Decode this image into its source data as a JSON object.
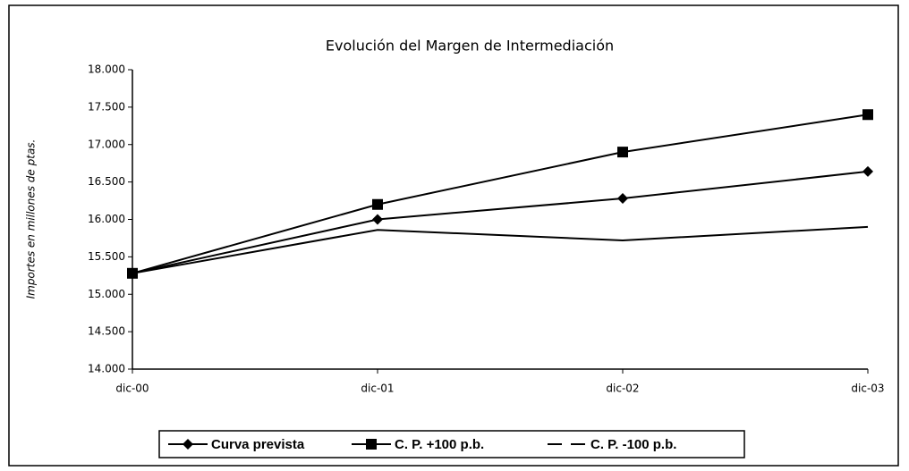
{
  "chart_data": {
    "type": "line",
    "title": "Evolución del Margen de Intermediación",
    "y_label": "Importes en millones de ptas.",
    "categories": [
      "dic-00",
      "dic-01",
      "dic-02",
      "dic-03"
    ],
    "series": [
      {
        "name": "Curva prevista",
        "color": "#000000",
        "marker": "diamond",
        "values": [
          15280,
          16000,
          16280,
          16640
        ]
      },
      {
        "name": "C. P. +100 p.b.",
        "color": "#000000",
        "marker": "square",
        "values": [
          15280,
          16200,
          16900,
          17400
        ]
      },
      {
        "name": "C. P. -100 p.b.",
        "color": "#000000",
        "marker": "none",
        "values": [
          15280,
          15860,
          15720,
          15900
        ]
      }
    ],
    "ylim": [
      14000,
      18000
    ],
    "yticks": [
      {
        "value": 14000,
        "label": "14.000"
      },
      {
        "value": 14500,
        "label": "14.500"
      },
      {
        "value": 15000,
        "label": "15.000"
      },
      {
        "value": 15500,
        "label": "15.500"
      },
      {
        "value": 16000,
        "label": "16.000"
      },
      {
        "value": 16500,
        "label": "16.500"
      },
      {
        "value": 17000,
        "label": "17.000"
      },
      {
        "value": 17500,
        "label": "17.500"
      },
      {
        "value": 18000,
        "label": "18.000"
      }
    ],
    "grid": false,
    "legend": "bottom"
  }
}
